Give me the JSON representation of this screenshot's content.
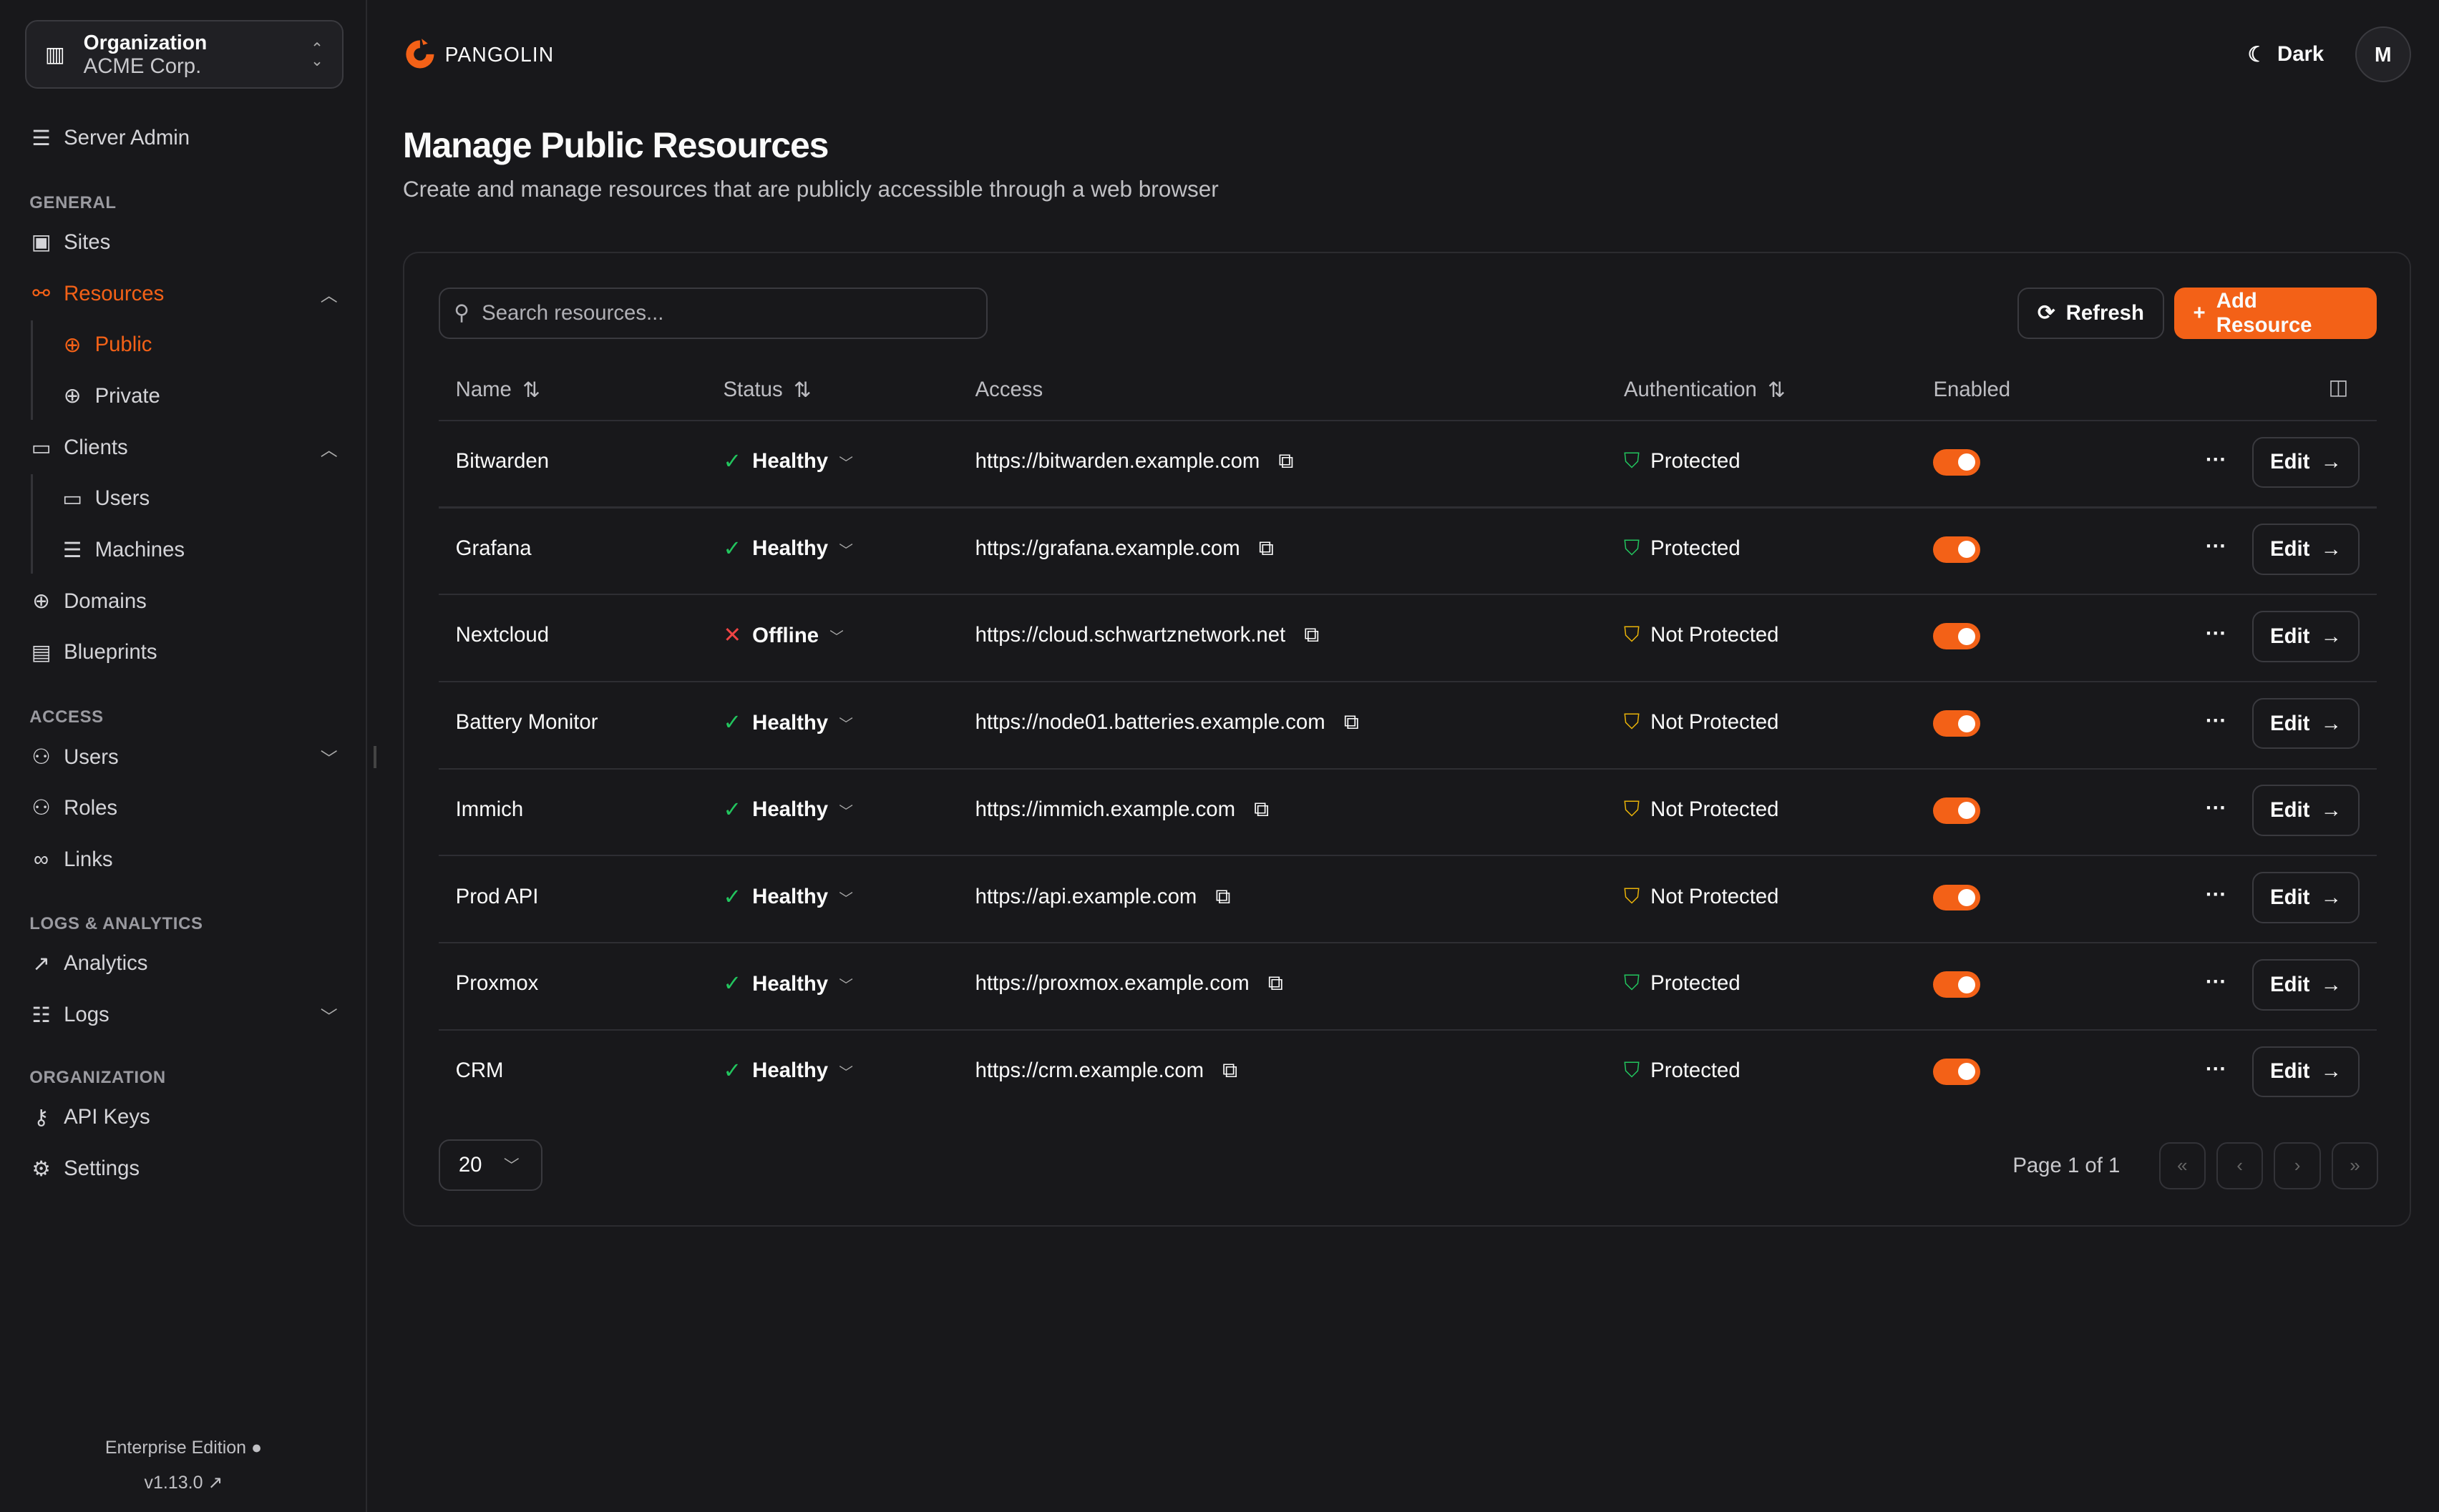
{
  "org": {
    "label": "Organization",
    "name": "ACME Corp."
  },
  "sidebar": {
    "server_admin": "Server Admin",
    "sections": {
      "general": "GENERAL",
      "access": "ACCESS",
      "logs": "LOGS & ANALYTICS",
      "organization": "ORGANIZATION"
    },
    "items": {
      "sites": "Sites",
      "resources": "Resources",
      "public": "Public",
      "private": "Private",
      "clients": "Clients",
      "users": "Users",
      "machines": "Machines",
      "domains": "Domains",
      "blueprints": "Blueprints",
      "access_users": "Users",
      "roles": "Roles",
      "links": "Links",
      "analytics": "Analytics",
      "logs": "Logs",
      "api_keys": "API Keys",
      "settings": "Settings"
    },
    "edition": "Enterprise Edition",
    "version": "v1.13.0"
  },
  "header": {
    "brand": "PANGOLIN",
    "theme": "Dark",
    "avatar": "M"
  },
  "page": {
    "title": "Manage Public Resources",
    "subtitle": "Create and manage resources that are publicly accessible through a web browser"
  },
  "toolbar": {
    "search_placeholder": "Search resources...",
    "refresh": "Refresh",
    "add": "Add Resource"
  },
  "table": {
    "columns": [
      "Name",
      "Status",
      "Access",
      "Authentication",
      "Enabled"
    ],
    "rows": [
      {
        "name": "Bitwarden",
        "status": "Healthy",
        "access": "https://bitwarden.example.com",
        "auth": "Protected",
        "enabled": true
      },
      {
        "name": "Grafana",
        "status": "Healthy",
        "access": "https://grafana.example.com",
        "auth": "Protected",
        "enabled": true
      },
      {
        "name": "Nextcloud",
        "status": "Offline",
        "access": "https://cloud.schwartznetwork.net",
        "auth": "Not Protected",
        "enabled": true
      },
      {
        "name": "Battery Monitor",
        "status": "Healthy",
        "access": "https://node01.batteries.example.com",
        "auth": "Not Protected",
        "enabled": true
      },
      {
        "name": "Immich",
        "status": "Healthy",
        "access": "https://immich.example.com",
        "auth": "Not Protected",
        "enabled": true
      },
      {
        "name": "Prod API",
        "status": "Healthy",
        "access": "https://api.example.com",
        "auth": "Not Protected",
        "enabled": true
      },
      {
        "name": "Proxmox",
        "status": "Healthy",
        "access": "https://proxmox.example.com",
        "auth": "Protected",
        "enabled": true
      },
      {
        "name": "CRM",
        "status": "Healthy",
        "access": "https://crm.example.com",
        "auth": "Protected",
        "enabled": true
      }
    ],
    "edit_label": "Edit"
  },
  "pagination": {
    "page_size": "20",
    "page_info": "Page 1 of 1"
  },
  "colors": {
    "accent": "#f36117",
    "healthy": "#22c55e",
    "offline": "#ef4444",
    "not_protected": "#eab308"
  }
}
